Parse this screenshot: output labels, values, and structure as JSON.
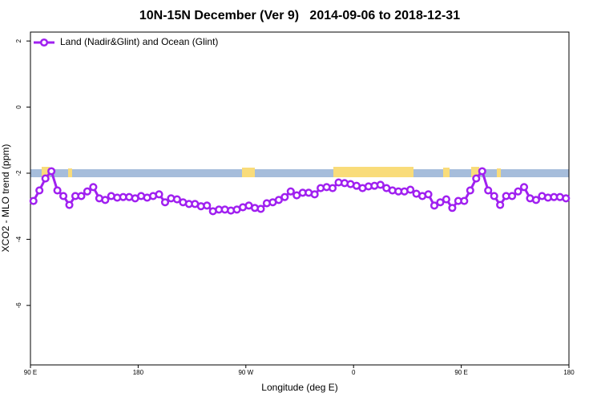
{
  "chart_data": {
    "type": "line",
    "title": "10N-15N December (Ver 9)   2014-09-06 to 2018-12-31",
    "xlabel": "Longitude (deg E)",
    "ylabel": "XCO2 - MLO trend (ppm)",
    "xlim": [
      -270,
      180
    ],
    "ylim": [
      -7.8,
      2.27
    ],
    "xticks": [
      {
        "value": -270,
        "label": "90 E"
      },
      {
        "value": -180,
        "label": "180"
      },
      {
        "value": -90,
        "label": "90 W"
      },
      0,
      {
        "value": 90,
        "label": "90 E"
      },
      180
    ],
    "yticks": [
      -6,
      -4,
      -2,
      0,
      2
    ],
    "legend": "top-left",
    "x": [
      -267.5,
      -262.5,
      -257.5,
      -252.5,
      -247.5,
      -242.5,
      -237.5,
      -232.5,
      -227.5,
      -222.5,
      -217.5,
      -212.5,
      -207.5,
      -202.5,
      -197.5,
      -192.5,
      -187.5,
      -182.5,
      -177.5,
      -172.5,
      -167.5,
      -162.5,
      -157.5,
      -152.5,
      -147.5,
      -142.5,
      -137.5,
      -132.5,
      -127.5,
      -122.5,
      -117.5,
      -112.5,
      -107.5,
      -102.5,
      -97.5,
      -92.5,
      -87.5,
      -82.5,
      -77.5,
      -72.5,
      -67.5,
      -62.5,
      -57.5,
      -52.5,
      -47.5,
      -42.5,
      -37.5,
      -32.5,
      -27.5,
      -22.5,
      -17.5,
      -12.5,
      -7.5,
      -2.5,
      2.5,
      7.5,
      12.5,
      17.5,
      22.5,
      27.5,
      32.5,
      37.5,
      42.5,
      47.5,
      52.5,
      57.5,
      62.5,
      67.5,
      72.5,
      77.5,
      82.5,
      87.5,
      92.5,
      97.5,
      102.5,
      107.5,
      112.5,
      117.5,
      122.5,
      127.5,
      132.5,
      137.5,
      142.5,
      147.5,
      152.5,
      157.5,
      162.5,
      167.5,
      172.5,
      177.5
    ],
    "series": [
      {
        "name": "Land (Nadir&Glint) and Ocean (Glint)",
        "color": "#a020f0",
        "values": [
          -2.84,
          -2.52,
          -2.16,
          -1.94,
          -2.52,
          -2.69,
          -2.96,
          -2.69,
          -2.69,
          -2.55,
          -2.42,
          -2.76,
          -2.81,
          -2.69,
          -2.74,
          -2.72,
          -2.72,
          -2.76,
          -2.69,
          -2.74,
          -2.69,
          -2.64,
          -2.88,
          -2.76,
          -2.79,
          -2.88,
          -2.93,
          -2.93,
          -3.0,
          -2.98,
          -3.15,
          -3.1,
          -3.1,
          -3.13,
          -3.1,
          -3.03,
          -2.98,
          -3.05,
          -3.08,
          -2.91,
          -2.88,
          -2.81,
          -2.72,
          -2.55,
          -2.67,
          -2.59,
          -2.59,
          -2.64,
          -2.45,
          -2.42,
          -2.45,
          -2.28,
          -2.3,
          -2.33,
          -2.38,
          -2.45,
          -2.4,
          -2.38,
          -2.35,
          -2.45,
          -2.52,
          -2.55,
          -2.55,
          -2.5,
          -2.62,
          -2.69,
          -2.64,
          -2.98,
          -2.88,
          -2.79,
          -3.05,
          -2.84,
          -2.84,
          -2.52,
          -2.16,
          -1.94,
          -2.52,
          -2.69,
          -2.96,
          -2.69,
          -2.69,
          -2.55,
          -2.42,
          -2.76,
          -2.81,
          -2.69,
          -2.74,
          -2.72,
          -2.72,
          -2.76
        ]
      }
    ]
  }
}
